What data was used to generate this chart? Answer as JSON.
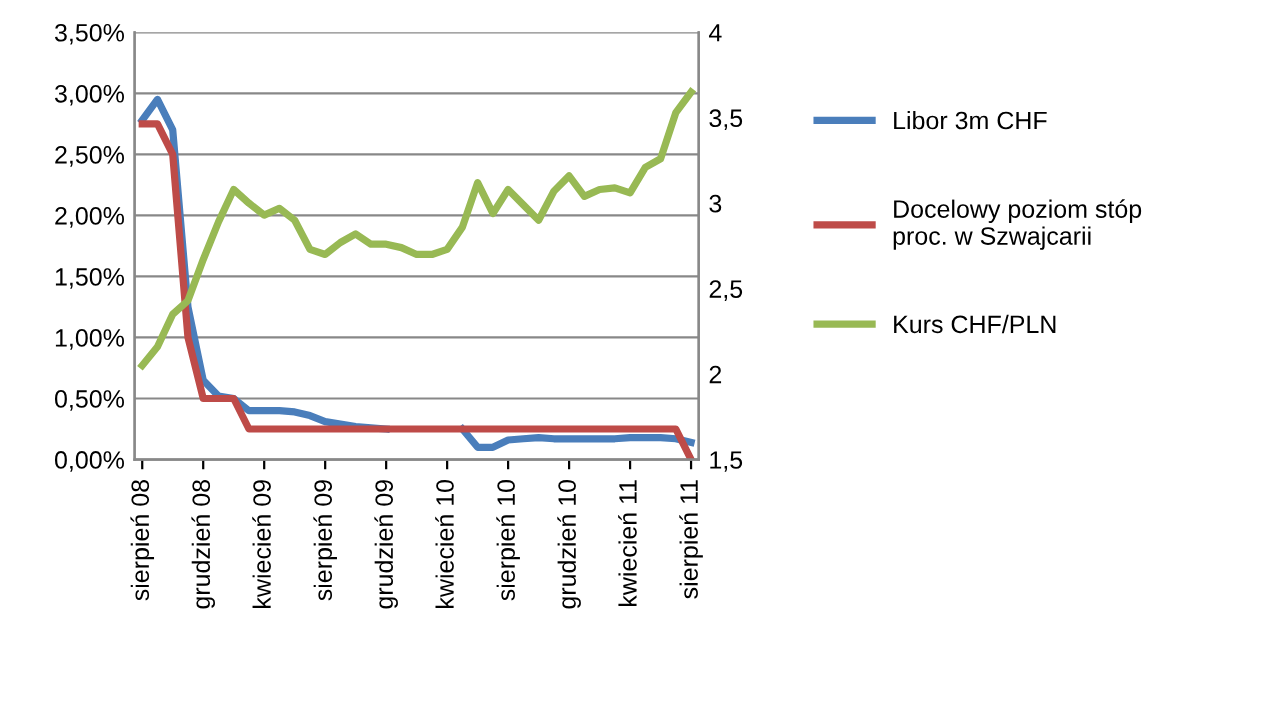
{
  "chart_data": {
    "type": "line",
    "categories": [
      "sierpień 08",
      null,
      null,
      null,
      "grudzień 08",
      null,
      null,
      null,
      "kwiecień 09",
      null,
      null,
      null,
      "sierpień 09",
      null,
      null,
      null,
      "grudzień 09",
      null,
      null,
      null,
      "kwiecień 10",
      null,
      null,
      null,
      "sierpień 10",
      null,
      null,
      null,
      "grudzień 10",
      null,
      null,
      null,
      "kwiecień 11",
      null,
      null,
      null,
      "sierpień 11"
    ],
    "series": [
      {
        "name": "Libor 3m CHF",
        "color": "#4a7ebb",
        "values": [
          2.78,
          2.95,
          2.7,
          1.25,
          0.65,
          0.52,
          0.5,
          0.4,
          0.4,
          0.4,
          0.39,
          0.36,
          0.31,
          0.29,
          0.27,
          0.26,
          0.25,
          null,
          null,
          null,
          null,
          0.25,
          0.1,
          0.1,
          0.16,
          0.17,
          0.18,
          0.17,
          0.17,
          0.17,
          0.17,
          0.17,
          0.18,
          0.18,
          0.18,
          0.17,
          0.14
        ]
      },
      {
        "name": "Docelowy poziom stóp proc. w Szwajcarii",
        "color": "#be4b48",
        "values": [
          2.75,
          2.75,
          2.5,
          1.0,
          0.5,
          0.5,
          0.5,
          0.25,
          0.25,
          0.25,
          0.25,
          0.25,
          0.25,
          0.25,
          0.25,
          0.25,
          0.25,
          0.25,
          0.25,
          0.25,
          0.25,
          0.25,
          0.25,
          0.25,
          0.25,
          0.25,
          0.25,
          0.25,
          0.25,
          0.25,
          0.25,
          0.25,
          0.25,
          0.25,
          0.25,
          0.25,
          0.0
        ]
      },
      {
        "name": "Kurs CHF/PLN",
        "color": "#98b954",
        "axis": "y2",
        "values": [
          2.05,
          2.16,
          2.35,
          2.43,
          2.67,
          2.89,
          3.08,
          3.0,
          2.93,
          2.97,
          2.9,
          2.73,
          2.7,
          2.77,
          2.82,
          2.76,
          2.76,
          2.74,
          2.7,
          2.7,
          2.73,
          2.86,
          3.12,
          2.94,
          3.08,
          2.99,
          2.9,
          3.07,
          3.16,
          3.04,
          3.08,
          3.09,
          3.06,
          3.21,
          3.26,
          3.53,
          3.65
        ]
      }
    ],
    "ylim": [
      0,
      3.5
    ],
    "yticks": [
      {
        "value": 0,
        "label": "0,00%"
      },
      {
        "value": 0.5,
        "label": "0,50%"
      },
      {
        "value": 1,
        "label": "1,00%"
      },
      {
        "value": 1.5,
        "label": "1,50%"
      },
      {
        "value": 2,
        "label": "2,00%"
      },
      {
        "value": 2.5,
        "label": "2,50%"
      },
      {
        "value": 3,
        "label": "3,00%"
      },
      {
        "value": 3.5,
        "label": "3,50%"
      }
    ],
    "y2lim": [
      1.5,
      4
    ],
    "y2ticks": [
      {
        "value": 1.5,
        "label": "1,5"
      },
      2,
      {
        "value": 2.5,
        "label": "2,5"
      },
      3,
      {
        "value": 3.5,
        "label": "3,5"
      },
      4
    ],
    "grid": "y",
    "legend": "right",
    "line_style": "solid",
    "marker": "none"
  }
}
